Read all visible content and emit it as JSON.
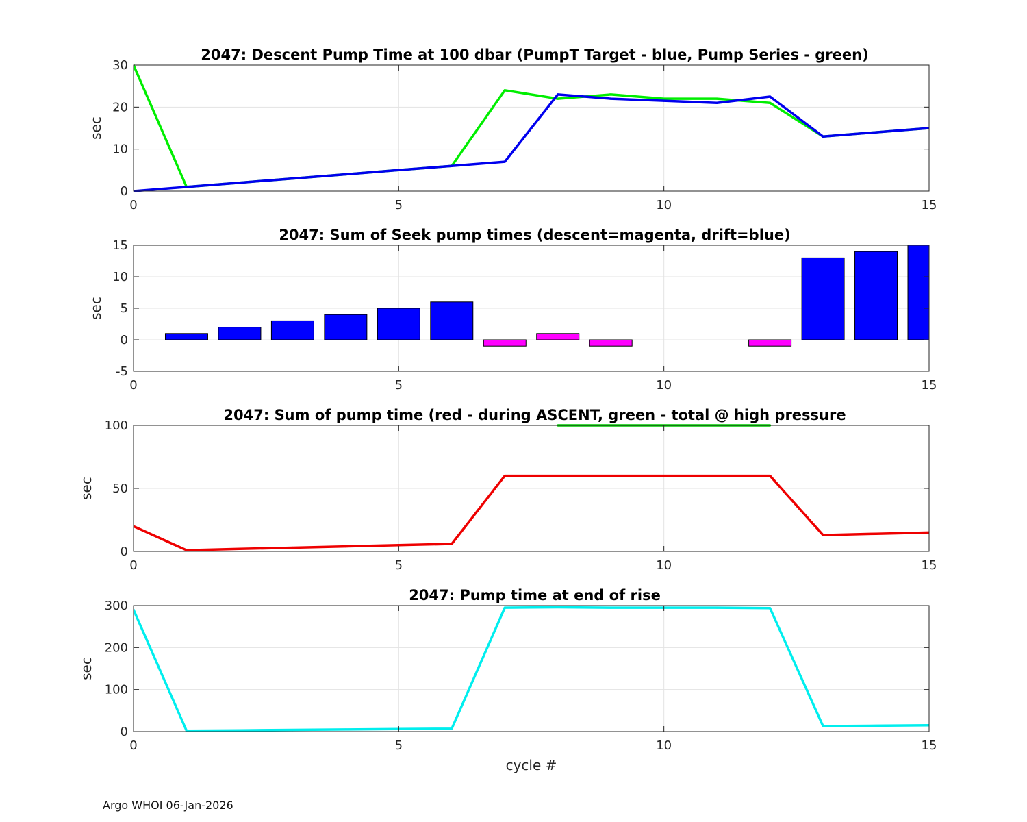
{
  "footer": "Argo WHOI 06-Jan-2026",
  "chart_data": [
    {
      "type": "line",
      "title": "2047: Descent Pump Time at 100 dbar (PumpT Target - blue, Pump Series - green)",
      "xlabel": "",
      "ylabel": "sec",
      "xlim": [
        0,
        15
      ],
      "ylim": [
        0,
        30
      ],
      "xticks": [
        0,
        5,
        10,
        15
      ],
      "yticks": [
        0,
        10,
        20,
        30
      ],
      "grid": true,
      "series": [
        {
          "color": "#00ee00",
          "x": [
            0,
            1,
            2,
            3,
            4,
            5,
            6,
            7,
            8,
            9,
            10,
            11,
            12,
            13,
            14,
            15
          ],
          "values": [
            30,
            1,
            2,
            3,
            4,
            5,
            6,
            24,
            22,
            23,
            22,
            22,
            21,
            13,
            14,
            15
          ]
        },
        {
          "color": "#0000ee",
          "x": [
            0,
            1,
            2,
            3,
            4,
            5,
            6,
            7,
            8,
            9,
            10,
            11,
            12,
            13,
            14,
            15
          ],
          "values": [
            0,
            1,
            2,
            3,
            4,
            5,
            6,
            7,
            23,
            22,
            21.5,
            21,
            22.5,
            13,
            14,
            15
          ]
        }
      ]
    },
    {
      "type": "bar",
      "title": "2047: Sum of Seek pump times (descent=magenta, drift=blue)",
      "xlabel": "",
      "ylabel": "sec",
      "xlim": [
        0,
        15
      ],
      "ylim": [
        -5,
        15
      ],
      "xticks": [
        0,
        5,
        10,
        15
      ],
      "yticks": [
        -5,
        0,
        5,
        10,
        15
      ],
      "grid": true,
      "series": [
        {
          "color": "#0000ff",
          "x": [
            1,
            2,
            3,
            4,
            5,
            6,
            13,
            14,
            15
          ],
          "values": [
            1,
            2,
            3,
            4,
            5,
            6,
            13,
            14,
            15
          ]
        },
        {
          "color": "#ff00ff",
          "x": [
            7,
            8,
            9,
            12
          ],
          "values": [
            -1,
            1,
            -1,
            -1
          ]
        }
      ]
    },
    {
      "type": "line",
      "title": "2047: Sum of pump time (red - during ASCENT, green - total @ high pressure",
      "xlabel": "",
      "ylabel": "sec",
      "xlim": [
        0,
        15
      ],
      "ylim": [
        0,
        100
      ],
      "xticks": [
        0,
        5,
        10,
        15
      ],
      "yticks": [
        0,
        50,
        100
      ],
      "grid": true,
      "series": [
        {
          "color": "#00cc00",
          "x": [
            8,
            12
          ],
          "values": [
            100,
            100
          ]
        },
        {
          "color": "#ee0000",
          "x": [
            0,
            1,
            2,
            3,
            4,
            5,
            6,
            7,
            8,
            9,
            10,
            11,
            12,
            13,
            14,
            15
          ],
          "values": [
            20,
            1,
            2,
            3,
            4,
            5,
            6,
            60,
            60,
            60,
            60,
            60,
            60,
            13,
            14,
            15
          ]
        }
      ]
    },
    {
      "type": "line",
      "title": "2047: Pump time at end of rise",
      "xlabel": "cycle #",
      "ylabel": "sec",
      "xlim": [
        0,
        15
      ],
      "ylim": [
        0,
        300
      ],
      "xticks": [
        0,
        5,
        10,
        15
      ],
      "yticks": [
        0,
        100,
        200,
        300
      ],
      "grid": true,
      "series": [
        {
          "color": "#00eeee",
          "x": [
            0,
            1,
            2,
            3,
            4,
            5,
            6,
            7,
            8,
            9,
            10,
            11,
            12,
            13,
            14,
            15
          ],
          "values": [
            290,
            2,
            3,
            4,
            5,
            6,
            7,
            295,
            296,
            295,
            295,
            295,
            294,
            13,
            14,
            15
          ]
        }
      ]
    }
  ]
}
